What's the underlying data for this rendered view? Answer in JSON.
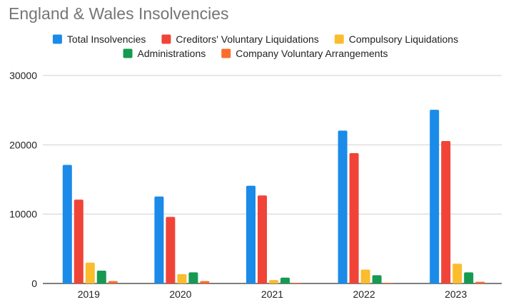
{
  "chart_data": {
    "type": "bar",
    "title": "England & Wales Insolvencies",
    "xlabel": "",
    "ylabel": "",
    "categories": [
      "2019",
      "2020",
      "2021",
      "2022",
      "2023"
    ],
    "series": [
      {
        "name": "Total Insolvencies",
        "color": "#1a8be9",
        "values": [
          17100,
          12550,
          14100,
          22050,
          25050
        ]
      },
      {
        "name": "Creditors' Voluntary Liquidations",
        "color": "#f04438",
        "values": [
          12100,
          9600,
          12700,
          18800,
          20550
        ]
      },
      {
        "name": "Compulsory Liquidations",
        "color": "#fbbc2e",
        "values": [
          3000,
          1350,
          500,
          2000,
          2850
        ]
      },
      {
        "name": "Administrations",
        "color": "#169a52",
        "values": [
          1850,
          1600,
          850,
          1200,
          1600
        ]
      },
      {
        "name": "Company Voluntary Arrangements",
        "color": "#fb6d2d",
        "values": [
          350,
          350,
          100,
          100,
          250
        ]
      }
    ],
    "ylim": [
      0,
      30000
    ],
    "yticks": [
      0,
      10000,
      20000,
      30000
    ],
    "grid": true,
    "legend_position": "top"
  }
}
